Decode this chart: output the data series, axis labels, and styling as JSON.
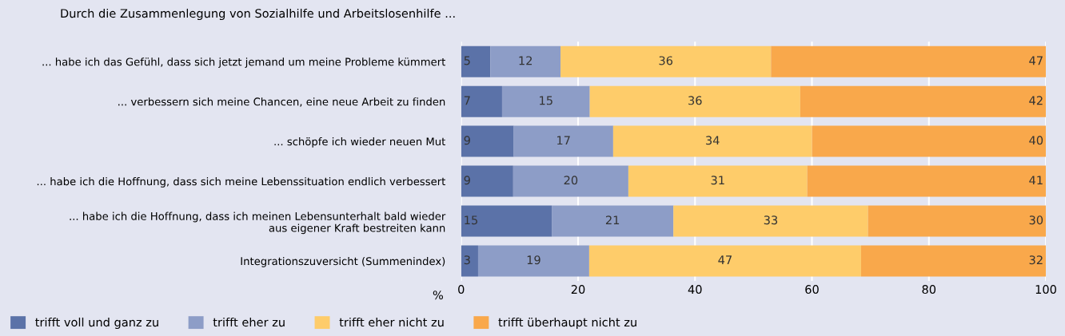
{
  "chart_data": {
    "type": "bar",
    "orientation": "horizontal",
    "stacked": true,
    "title": "Durch die Zusammenlegung von Sozialhilfe und Arbeitslosenhilfe ...",
    "xlabel": "%",
    "categories": [
      "... habe ich das Gefühl, dass sich jetzt jemand um meine Probleme kümmert",
      "... verbessern sich meine Chancen, eine neue Arbeit zu finden",
      "... schöpfe ich wieder neuen Mut",
      "... habe ich die Hoffnung, dass sich meine Lebenssituation endlich verbessert",
      "... habe ich die Hoffnung, dass ich meinen Lebensunterhalt bald wieder\naus eigener Kraft bestreiten kann",
      "Integrationszuversicht (Summenindex)"
    ],
    "series": [
      {
        "name": "trifft voll und ganz zu",
        "color": "#5b72a8",
        "values": [
          5,
          7,
          9,
          8.9,
          15.5,
          2.9
        ],
        "value_labels": [
          "5",
          "7",
          "9",
          "9",
          "15",
          "3"
        ]
      },
      {
        "name": "trifft eher zu",
        "color": "#8d9dc7",
        "values": [
          12,
          15,
          17,
          19.7,
          20.8,
          19.0
        ],
        "value_labels": [
          "12",
          "15",
          "17",
          "20",
          "21",
          "19"
        ]
      },
      {
        "name": "trifft eher nicht zu",
        "color": "#fecc6a",
        "values": [
          36,
          36,
          34,
          30.6,
          33.3,
          46.5
        ],
        "value_labels": [
          "36",
          "36",
          "34",
          "31",
          "33",
          "47"
        ]
      },
      {
        "name": "trifft überhaupt nicht zu",
        "color": "#f9a84b",
        "values": [
          47,
          42,
          40,
          40.8,
          30.4,
          31.6
        ],
        "value_labels": [
          "47",
          "42",
          "40",
          "41",
          "30",
          "32"
        ]
      }
    ],
    "xlim": [
      0,
      100
    ],
    "xticks": [
      0,
      20,
      40,
      60,
      80,
      100
    ],
    "grid": "x",
    "legend": "bottom left"
  }
}
